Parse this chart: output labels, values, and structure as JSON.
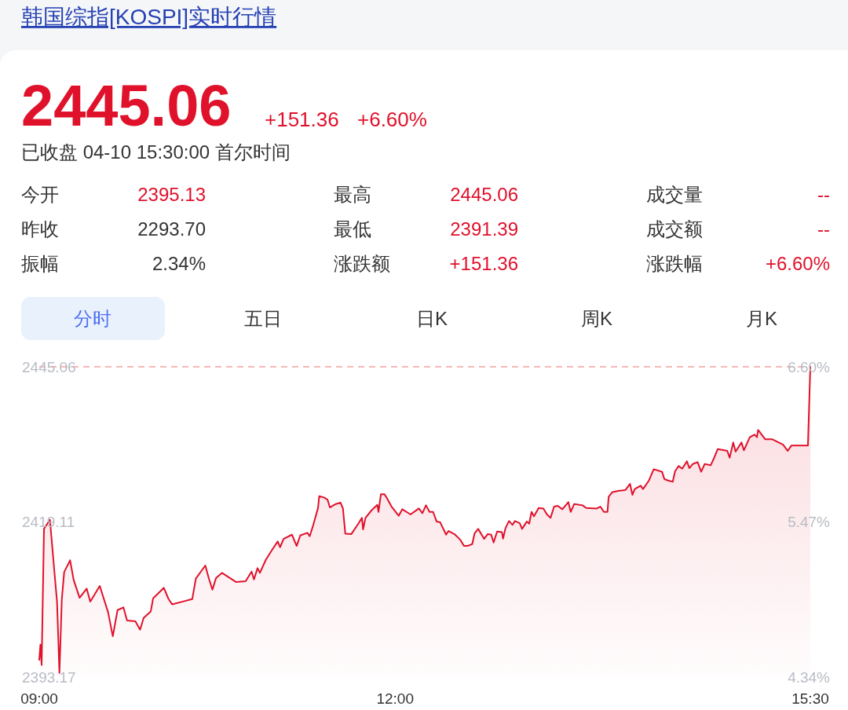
{
  "chart_data": {
    "type": "area",
    "title": "韩国综指[KOSPI]实时行情",
    "annotations": [
      "2445.06",
      "+151.36",
      "+6.60%",
      "已收盘 04-10 15:30:00 首尔时间",
      "今开",
      "2395.13",
      "最高",
      "2445.06",
      "成交量",
      "--",
      "昨收",
      "2293.70",
      "最低",
      "2391.39",
      "成交额",
      "--",
      "振幅",
      "2.34%",
      "涨跌额",
      "+151.36",
      "涨跌幅",
      "+6.60%",
      "分时",
      "五日",
      "日K",
      "周K",
      "月K"
    ],
    "series": [
      {
        "color": "#e0112b",
        "x": [
          9.0,
          9.01,
          9.02,
          9.04,
          9.09,
          9.15,
          9.17,
          9.19,
          9.21,
          9.26,
          9.29,
          9.34,
          9.4,
          9.43,
          9.51,
          9.58,
          9.62,
          9.66,
          9.71,
          9.74,
          9.81,
          9.85,
          9.88,
          9.94,
          9.96,
          10.05,
          10.09,
          10.12,
          10.23,
          10.29,
          10.32,
          10.4,
          10.43,
          10.46,
          10.49,
          10.54,
          10.66,
          10.74,
          10.79,
          10.81,
          10.84,
          10.86,
          10.91,
          10.96,
          11.01,
          11.03,
          11.06,
          11.13,
          11.17,
          11.2,
          11.26,
          11.28,
          11.31,
          11.35,
          11.36,
          11.4,
          11.43,
          11.45,
          11.5,
          11.54,
          11.56,
          11.58,
          11.63,
          11.69,
          11.72,
          11.73,
          11.75,
          11.8,
          11.85,
          11.86,
          11.88,
          11.91,
          11.93,
          11.97,
          12.03,
          12.06,
          12.13,
          12.2,
          12.23,
          12.26,
          12.29,
          12.32,
          12.35,
          12.38,
          12.43,
          12.45,
          12.5,
          12.55,
          12.58,
          12.61,
          12.65,
          12.67,
          12.7,
          12.75,
          12.78,
          12.81,
          12.83,
          12.86,
          12.9,
          12.91,
          12.93,
          12.96,
          12.99,
          13.01,
          13.05,
          13.07,
          13.11,
          13.13,
          13.15,
          13.17,
          13.21,
          13.25,
          13.28,
          13.31,
          13.34,
          13.37,
          13.41,
          13.46,
          13.48,
          13.51,
          13.58,
          13.61,
          13.7,
          13.73,
          13.76,
          13.79,
          13.8,
          13.83,
          13.88,
          13.94,
          13.98,
          14.0,
          14.02,
          14.07,
          14.09,
          14.14,
          14.18,
          14.25,
          14.27,
          14.3,
          14.34,
          14.36,
          14.39,
          14.42,
          14.46,
          14.48,
          14.51,
          14.55,
          14.58,
          14.61,
          14.66,
          14.69,
          14.72,
          14.8,
          14.82,
          14.85,
          14.87,
          14.92,
          14.94,
          14.99,
          15.03,
          15.05,
          15.06,
          15.12,
          15.18,
          15.27,
          15.31,
          15.34,
          15.48,
          15.5
        ],
        "values": [
          2396.05,
          2398.59,
          2395.17,
          2417.95,
          2419.48,
          2405.68,
          2393.86,
          2406.12,
          2410.72,
          2412.69,
          2409.41,
          2406.43,
          2407.96,
          2405.77,
          2408.4,
          2404.02,
          2399.99,
          2404.37,
          2404.81,
          2402.62,
          2402.49,
          2401.09,
          2403.06,
          2404.15,
          2406.34,
          2408.09,
          2406.21,
          2405.33,
          2405.9,
          2406.21,
          2409.63,
          2411.82,
          2409.63,
          2407.79,
          2409.71,
          2410.59,
          2409.06,
          2409.19,
          2410.81,
          2409.49,
          2411.38,
          2410.59,
          2412.78,
          2414.36,
          2415.85,
          2414.88,
          2416.28,
          2416.98,
          2415.1,
          2416.85,
          2417.29,
          2416.72,
          2418.61,
          2421.45,
          2423.42,
          2423.2,
          2422.85,
          2421.54,
          2422.11,
          2422.33,
          2421.36,
          2417.16,
          2417.07,
          2418.82,
          2419.79,
          2417.86,
          2419.79,
          2421.02,
          2421.98,
          2420.79,
          2423.73,
          2423.73,
          2423.12,
          2421.67,
          2420.14,
          2421.23,
          2420.36,
          2421.36,
          2420.58,
          2421.89,
          2420.79,
          2420.79,
          2419.17,
          2419.04,
          2416.98,
          2417.6,
          2417.07,
          2416.11,
          2415.1,
          2415.1,
          2415.41,
          2417.2,
          2417.95,
          2416.28,
          2417.07,
          2416.98,
          2415.67,
          2417.51,
          2417.42,
          2416.33,
          2418.04,
          2419.26,
          2418.61,
          2419.26,
          2418.91,
          2417.95,
          2419.17,
          2418.82,
          2420.79,
          2420.05,
          2421.45,
          2421.36,
          2420.36,
          2419.79,
          2421.67,
          2421.8,
          2421.23,
          2422.42,
          2420.79,
          2422.11,
          2421.89,
          2421.45,
          2421.36,
          2421.67,
          2420.79,
          2420.79,
          2423.29,
          2424.08,
          2424.3,
          2424.43,
          2425.48,
          2423.64,
          2424.61,
          2425.18,
          2424.61,
          2426.05,
          2427.93,
          2427.5,
          2426.27,
          2426.05,
          2425.83,
          2427.58,
          2428.46,
          2428.02,
          2429.25,
          2428.11,
          2428.81,
          2429.12,
          2427.5,
          2428.81,
          2428.59,
          2429.86,
          2431.31,
          2431.0,
          2429.86,
          2432.4,
          2430.87,
          2432.4,
          2431.09,
          2433.28,
          2433.72,
          2433.28,
          2434.5,
          2432.93,
          2432.93,
          2432.05,
          2431.0,
          2431.88,
          2431.88,
          2445.06
        ]
      }
    ],
    "xlim": [
      9,
      15.5
    ],
    "xticks": [
      {
        "value": 9,
        "label": "09:00"
      },
      {
        "value": 12,
        "label": "12:00"
      },
      {
        "value": 15.5,
        "label": "15:30"
      }
    ],
    "ylim": [
      2393.17,
      2445.06
    ],
    "yticks": [
      2393.17,
      2419.11,
      2445.06
    ],
    "y2lim": [
      4.34,
      6.6
    ],
    "y2ticks": [
      {
        "value": 4.34,
        "label": "4.34%"
      },
      {
        "value": 5.47,
        "label": "5.47%"
      },
      {
        "value": 6.6,
        "label": "6.60%"
      }
    ],
    "ref_lines": [
      {
        "axis": "y",
        "value": 2445.06,
        "color": "#f4a3a3",
        "line_style": "dashed"
      }
    ],
    "grid": false,
    "marker": "none",
    "line_style": "solid"
  }
}
